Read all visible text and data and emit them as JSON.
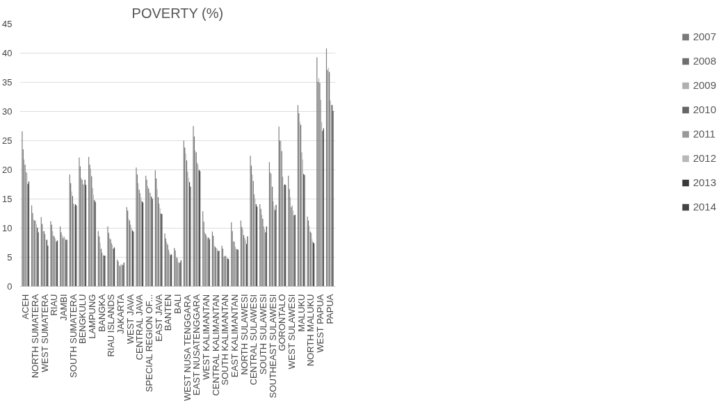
{
  "chart_data": {
    "type": "bar",
    "title": "POVERTY (%)",
    "categories": [
      "ACEH",
      "NORTH SUMATERA",
      "WEST SUMATERA",
      "RIAU",
      "JAMBI",
      "SOUTH SUMATERA",
      "BENGKULU",
      "LAMPUNG",
      "BANGKA",
      "RIAU ISLANDS",
      "JAKARTA",
      "WEST JAVA",
      "CENTRAL JAVA",
      "SPECIAL REGION OF...",
      "EAST JAVA",
      "BANTEN",
      "BALI",
      "WEST NUSA TENGGARA",
      "EAST NUSATENGGARA",
      "WEST KALIMANTAN",
      "CENTRAL KALIMANTAN",
      "SOUTH KALIMANTAN",
      "EAST KALIMANTAN",
      "NORTH SULAWESI",
      "CENTRAL SULAWESI",
      "SOUTH SULAWESI",
      "SOUTHEAST SULAWESI",
      "GORONTALO",
      "WEST SULAWESI",
      "MALUKU",
      "NORTH MALUKU",
      "WEST PAPUA",
      "PAPUA"
    ],
    "series": [
      {
        "name": "2007",
        "color": "#7a7a7a",
        "values": [
          26.6,
          13.9,
          11.9,
          11.2,
          10.3,
          19.2,
          22.1,
          22.2,
          9.5,
          10.3,
          4.6,
          13.6,
          20.4,
          19.0,
          19.9,
          9.1,
          6.6,
          25.0,
          27.5,
          12.9,
          9.4,
          7.0,
          11.0,
          11.3,
          22.4,
          14.1,
          21.3,
          27.4,
          19.0,
          31.1,
          12.0,
          39.3,
          40.8
        ]
      },
      {
        "name": "2008",
        "color": "#6e6e6e",
        "values": [
          23.5,
          12.6,
          10.7,
          10.6,
          9.3,
          17.7,
          20.6,
          20.9,
          8.6,
          9.2,
          4.3,
          13.0,
          19.2,
          18.3,
          18.5,
          8.2,
          6.2,
          23.8,
          25.7,
          11.1,
          8.7,
          6.5,
          9.5,
          10.2,
          20.7,
          13.3,
          19.5,
          25.0,
          16.7,
          29.7,
          11.3,
          35.1,
          37.1
        ]
      },
      {
        "name": "2009",
        "color": "#b0b0b0",
        "values": [
          21.8,
          11.5,
          9.5,
          9.5,
          8.8,
          16.3,
          18.6,
          20.2,
          7.5,
          8.3,
          3.6,
          11.6,
          17.7,
          17.2,
          16.7,
          7.6,
          5.1,
          22.8,
          23.3,
          9.3,
          7.0,
          5.1,
          7.7,
          9.8,
          19.2,
          12.3,
          19.3,
          25.0,
          15.3,
          28.2,
          10.4,
          35.7,
          37.5
        ]
      },
      {
        "name": "2010",
        "color": "#666666",
        "values": [
          20.9,
          11.3,
          9.5,
          8.7,
          8.3,
          15.5,
          18.3,
          18.9,
          6.5,
          8.1,
          3.5,
          11.3,
          16.6,
          16.8,
          15.3,
          7.2,
          4.9,
          21.6,
          23.0,
          9.0,
          6.8,
          5.2,
          7.7,
          8.8,
          18.1,
          11.6,
          17.1,
          23.2,
          13.6,
          27.7,
          9.4,
          34.9,
          36.8
        ]
      },
      {
        "name": "2011",
        "color": "#999999",
        "values": [
          19.6,
          11.3,
          9.0,
          8.5,
          8.6,
          14.2,
          17.5,
          16.9,
          5.8,
          7.4,
          3.8,
          10.6,
          16.0,
          16.1,
          14.2,
          6.3,
          4.2,
          19.7,
          21.2,
          8.6,
          6.6,
          5.3,
          6.8,
          8.3,
          15.8,
          10.3,
          14.6,
          18.8,
          13.9,
          23.0,
          9.2,
          32.0,
          31.9
        ]
      },
      {
        "name": "2012",
        "color": "#b8b8b8",
        "values": [
          19.5,
          10.7,
          8.0,
          8.2,
          8.3,
          13.8,
          17.5,
          15.7,
          5.4,
          7.1,
          3.7,
          10.1,
          15.3,
          16.0,
          13.4,
          5.8,
          4.0,
          18.6,
          20.9,
          8.2,
          6.5,
          5.1,
          6.4,
          7.9,
          15.1,
          9.8,
          13.7,
          17.3,
          13.0,
          21.8,
          8.1,
          28.2,
          31.1
        ]
      },
      {
        "name": "2013",
        "color": "#3a3a3a",
        "values": [
          17.6,
          10.1,
          8.0,
          7.7,
          8.0,
          14.1,
          18.3,
          14.8,
          5.3,
          6.5,
          3.7,
          9.6,
          14.6,
          15.4,
          12.5,
          5.4,
          4.1,
          17.9,
          20.0,
          8.4,
          6.1,
          4.8,
          6.4,
          7.3,
          14.1,
          9.3,
          13.1,
          17.5,
          12.2,
          19.3,
          7.6,
          26.7,
          31.1
        ]
      },
      {
        "name": "2014",
        "color": "#444444",
        "values": [
          18.0,
          9.3,
          7.0,
          7.9,
          8.0,
          13.9,
          17.4,
          14.5,
          5.3,
          6.7,
          4.1,
          9.4,
          14.4,
          15.0,
          12.4,
          5.5,
          4.5,
          17.1,
          19.8,
          8.1,
          6.1,
          4.7,
          6.3,
          8.6,
          13.7,
          10.3,
          14.0,
          17.4,
          12.3,
          19.1,
          7.4,
          27.1,
          30.1
        ]
      }
    ],
    "ylim": [
      0,
      45
    ],
    "yticks": [
      0,
      5,
      10,
      15,
      20,
      25,
      30,
      35,
      40,
      45
    ],
    "grid": "y",
    "legend": "right"
  }
}
